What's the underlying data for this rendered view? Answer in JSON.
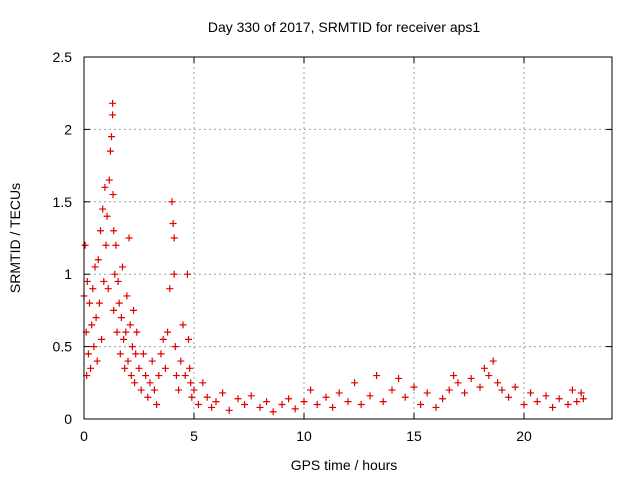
{
  "chart_data": {
    "type": "scatter",
    "title": "Day 330 of 2017, SRMTID for receiver aps1",
    "xlabel": "GPS time / hours",
    "ylabel": "SRMTID / TECUs",
    "xlim": [
      0,
      24
    ],
    "ylim": [
      0,
      2.5
    ],
    "xticks": [
      0,
      5,
      10,
      15,
      20
    ],
    "yticks": [
      0,
      0.5,
      1,
      1.5,
      2,
      2.5
    ],
    "xtick_labels": [
      "0",
      "5",
      "10",
      "15",
      "20"
    ],
    "ytick_labels": [
      "0",
      "0.5",
      "1",
      "1.5",
      "2",
      "2.5"
    ],
    "grid": true,
    "marker": "+",
    "series": [
      {
        "name": "aps1",
        "color": "#e00000",
        "x": [
          0.0,
          0.05,
          0.1,
          0.12,
          0.15,
          0.2,
          0.25,
          0.3,
          0.35,
          0.4,
          0.45,
          0.5,
          0.55,
          0.6,
          0.65,
          0.7,
          0.75,
          0.8,
          0.85,
          0.9,
          0.95,
          1.0,
          1.05,
          1.1,
          1.15,
          1.2,
          1.25,
          1.3,
          1.3,
          1.32,
          1.35,
          1.35,
          1.4,
          1.45,
          1.5,
          1.55,
          1.6,
          1.65,
          1.7,
          1.75,
          1.8,
          1.85,
          1.9,
          1.95,
          2.0,
          2.05,
          2.1,
          2.15,
          2.2,
          2.25,
          2.3,
          2.35,
          2.4,
          2.5,
          2.6,
          2.7,
          2.8,
          2.9,
          3.0,
          3.1,
          3.2,
          3.3,
          3.4,
          3.5,
          3.6,
          3.7,
          3.8,
          3.9,
          4.0,
          4.05,
          4.1,
          4.1,
          4.15,
          4.2,
          4.3,
          4.4,
          4.5,
          4.6,
          4.7,
          4.75,
          4.8,
          4.85,
          4.9,
          5.0,
          5.2,
          5.4,
          5.6,
          5.8,
          6.0,
          6.3,
          6.6,
          7.0,
          7.3,
          7.6,
          8.0,
          8.3,
          8.6,
          9.0,
          9.3,
          9.6,
          10.0,
          10.3,
          10.6,
          11.0,
          11.3,
          11.6,
          12.0,
          12.3,
          12.6,
          13.0,
          13.3,
          13.6,
          14.0,
          14.3,
          14.6,
          15.0,
          15.3,
          15.6,
          16.0,
          16.3,
          16.6,
          16.8,
          17.0,
          17.3,
          17.6,
          18.0,
          18.2,
          18.4,
          18.6,
          18.8,
          19.0,
          19.3,
          19.6,
          20.0,
          20.3,
          20.6,
          21.0,
          21.3,
          21.6,
          22.0,
          22.2,
          22.4,
          22.6,
          22.7
        ],
        "y": [
          0.85,
          1.2,
          0.6,
          0.3,
          0.95,
          0.45,
          0.8,
          0.35,
          0.65,
          0.9,
          0.5,
          1.05,
          0.7,
          0.4,
          1.1,
          0.8,
          1.3,
          0.55,
          1.45,
          0.95,
          1.6,
          1.2,
          1.4,
          0.9,
          1.65,
          1.85,
          1.95,
          2.1,
          2.18,
          1.55,
          1.3,
          0.75,
          1.0,
          1.2,
          0.6,
          0.95,
          0.8,
          0.45,
          0.7,
          1.05,
          0.55,
          0.35,
          0.6,
          0.85,
          0.4,
          1.25,
          0.65,
          0.3,
          0.5,
          0.75,
          0.25,
          0.45,
          0.6,
          0.35,
          0.2,
          0.45,
          0.3,
          0.15,
          0.25,
          0.4,
          0.2,
          0.1,
          0.3,
          0.45,
          0.55,
          0.35,
          0.6,
          0.9,
          1.5,
          1.35,
          1.25,
          1.0,
          0.5,
          0.3,
          0.2,
          0.4,
          0.65,
          0.3,
          1.0,
          0.55,
          0.35,
          0.25,
          0.15,
          0.2,
          0.1,
          0.25,
          0.15,
          0.08,
          0.12,
          0.18,
          0.06,
          0.14,
          0.1,
          0.16,
          0.08,
          0.12,
          0.05,
          0.1,
          0.14,
          0.07,
          0.12,
          0.2,
          0.1,
          0.15,
          0.08,
          0.18,
          0.12,
          0.25,
          0.1,
          0.16,
          0.3,
          0.12,
          0.2,
          0.28,
          0.15,
          0.22,
          0.1,
          0.18,
          0.08,
          0.14,
          0.2,
          0.3,
          0.25,
          0.18,
          0.28,
          0.22,
          0.35,
          0.3,
          0.4,
          0.25,
          0.2,
          0.15,
          0.22,
          0.1,
          0.18,
          0.12,
          0.16,
          0.08,
          0.14,
          0.1,
          0.2,
          0.12,
          0.18,
          0.14
        ]
      }
    ]
  }
}
